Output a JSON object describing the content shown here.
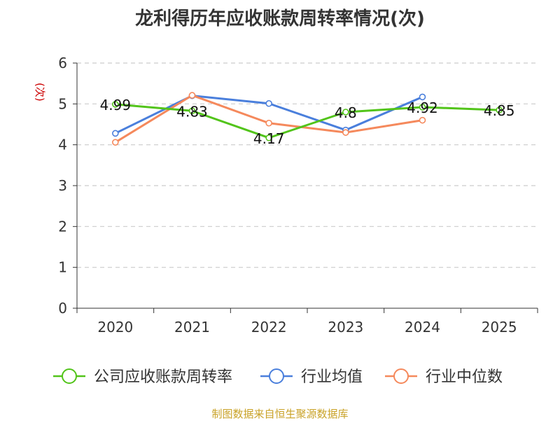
{
  "chart_data": {
    "type": "line",
    "title": "龙利得历年应收账款周转率情况(次)",
    "ylabel": "(次)",
    "categories": [
      "2020",
      "2021",
      "2022",
      "2023",
      "2024",
      "2025"
    ],
    "ylim": [
      0,
      6
    ],
    "yticks": [
      0,
      1,
      2,
      3,
      4,
      5,
      6
    ],
    "grid": true,
    "legend_position": "bottom",
    "series": [
      {
        "name": "公司应收账款周转率",
        "color": "#52c41a",
        "values": [
          4.99,
          4.83,
          4.17,
          4.8,
          4.92,
          4.85
        ],
        "labels": [
          "4.99",
          "4.83",
          "4.17",
          "4.8",
          "4.92",
          "4.85"
        ]
      },
      {
        "name": "行业均值",
        "color": "#4a7fdc",
        "values": [
          4.28,
          5.2,
          5.01,
          4.36,
          5.17,
          null
        ]
      },
      {
        "name": "行业中位数",
        "color": "#f5895c",
        "values": [
          4.06,
          5.21,
          4.53,
          4.3,
          4.6,
          null
        ]
      }
    ]
  },
  "footer": "制图数据来自恒生聚源数据库"
}
